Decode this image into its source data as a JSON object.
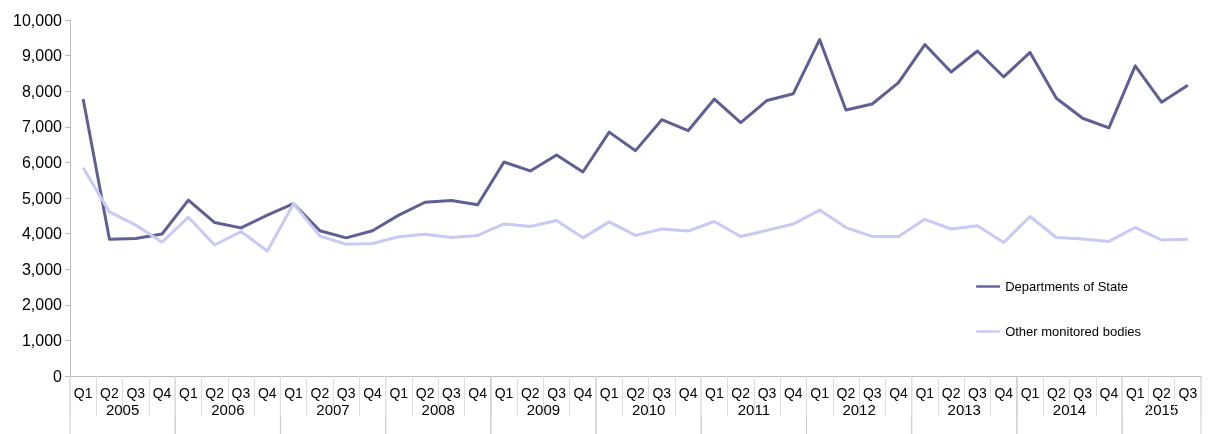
{
  "chart_data": {
    "type": "line",
    "categories": [
      "Q1",
      "Q2",
      "Q3",
      "Q4",
      "Q1",
      "Q2",
      "Q3",
      "Q4",
      "Q1",
      "Q2",
      "Q3",
      "Q4",
      "Q1",
      "Q2",
      "Q3",
      "Q4",
      "Q1",
      "Q2",
      "Q3",
      "Q4",
      "Q1",
      "Q2",
      "Q3",
      "Q4",
      "Q1",
      "Q2",
      "Q3",
      "Q4",
      "Q1",
      "Q2",
      "Q3",
      "Q4",
      "Q1",
      "Q2",
      "Q3",
      "Q4",
      "Q1",
      "Q2",
      "Q3",
      "Q4",
      "Q1",
      "Q2",
      "Q3"
    ],
    "series": [
      {
        "name": "Departments of State",
        "color": "#5f5f96",
        "values": [
          7780,
          3840,
          3860,
          3990,
          4940,
          4310,
          4160,
          4520,
          4840,
          4080,
          3880,
          4080,
          4520,
          4880,
          4930,
          4810,
          6010,
          5760,
          6210,
          5730,
          6850,
          6330,
          7200,
          6890,
          7780,
          7120,
          7740,
          7930,
          9450,
          7470,
          7640,
          8240,
          9310,
          8540,
          9130,
          8400,
          9090,
          7800,
          7240,
          6970,
          8710,
          7690,
          8170
        ]
      },
      {
        "name": "Other monitored bodies",
        "color": "#c9c9f5",
        "values": [
          5850,
          4610,
          4240,
          3760,
          4460,
          3680,
          4060,
          3510,
          4840,
          3930,
          3700,
          3720,
          3910,
          3980,
          3890,
          3950,
          4270,
          4200,
          4370,
          3880,
          4330,
          3950,
          4130,
          4070,
          4340,
          3920,
          4090,
          4270,
          4660,
          4170,
          3920,
          3920,
          4400,
          4130,
          4220,
          3750,
          4480,
          3890,
          3850,
          3780,
          4170,
          3820,
          3840
        ]
      }
    ],
    "annotations": [
      "2005",
      "2006",
      "2007",
      "2008",
      "2009",
      "2010",
      "2011",
      "2012",
      "2013",
      "2014",
      "2015"
    ],
    "ylim": [
      0,
      10000
    ],
    "yticks": [
      0,
      {
        "value": 1000,
        "label": "1,000"
      },
      {
        "value": 2000,
        "label": "2,000"
      },
      {
        "value": 3000,
        "label": "3,000"
      },
      {
        "value": 4000,
        "label": "4,000"
      },
      {
        "value": 5000,
        "label": "5,000"
      },
      {
        "value": 6000,
        "label": "6,000"
      },
      {
        "value": 7000,
        "label": "7,000"
      },
      {
        "value": 8000,
        "label": "8,000"
      },
      {
        "value": 9000,
        "label": "9,000"
      },
      {
        "value": 10000,
        "label": "10,000"
      }
    ],
    "grid": false,
    "legend": "right",
    "marker": "none",
    "line_style": "solid"
  }
}
